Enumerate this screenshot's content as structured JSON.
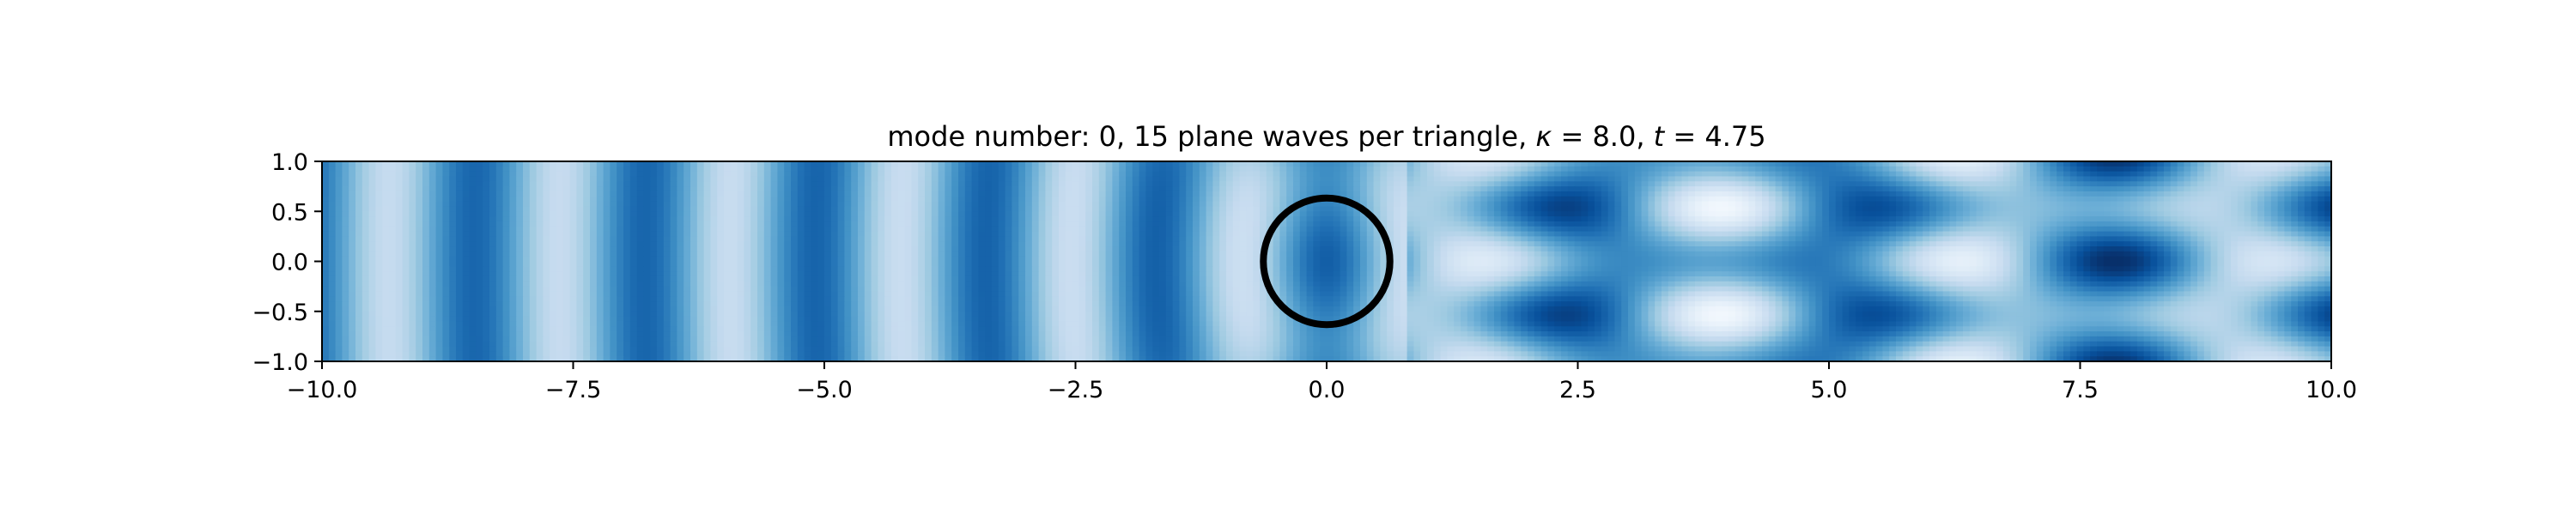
{
  "chart_data": {
    "type": "heatmap",
    "title_segments": [
      {
        "text": "mode number: 0, 15 plane waves per triangle, ",
        "style": "normal"
      },
      {
        "text": "κ",
        "style": "italic"
      },
      {
        "text": " = 8.0, ",
        "style": "normal"
      },
      {
        "text": "t",
        "style": "italic"
      },
      {
        "text": " = 4.75",
        "style": "normal"
      }
    ],
    "xlabel": "",
    "ylabel": "",
    "xlim": [
      -10.0,
      10.0
    ],
    "ylim": [
      -1.0,
      1.0
    ],
    "x_ticks": [
      {
        "value": -10.0,
        "label": "−10.0"
      },
      {
        "value": -7.5,
        "label": "−7.5"
      },
      {
        "value": -5.0,
        "label": "−5.0"
      },
      {
        "value": -2.5,
        "label": "−2.5"
      },
      {
        "value": 0.0,
        "label": "0.0"
      },
      {
        "value": 2.5,
        "label": "2.5"
      },
      {
        "value": 5.0,
        "label": "5.0"
      },
      {
        "value": 7.5,
        "label": "7.5"
      },
      {
        "value": 10.0,
        "label": "10.0"
      }
    ],
    "y_ticks": [
      {
        "value": 1.0,
        "label": "1.0"
      },
      {
        "value": 0.5,
        "label": "0.5"
      },
      {
        "value": 0.0,
        "label": "0.0"
      },
      {
        "value": -0.5,
        "label": "−0.5"
      },
      {
        "value": -1.0,
        "label": "−1.0"
      }
    ],
    "colormap": "Blues",
    "colormap_stops": [
      "#f7fbff",
      "#deebf7",
      "#c6dbef",
      "#9ecae1",
      "#6baed6",
      "#4292c6",
      "#2171b5",
      "#08519c",
      "#08306b"
    ],
    "grid": false,
    "legend": "none",
    "obstacle": {
      "shape": "circle",
      "center": [
        0.0,
        0.0
      ],
      "radius": 0.6,
      "color": "#000000"
    },
    "wavenumber_kappa": 8.0,
    "time_t": 4.75,
    "mode_number": 0,
    "plane_waves_per_triangle": 15
  }
}
